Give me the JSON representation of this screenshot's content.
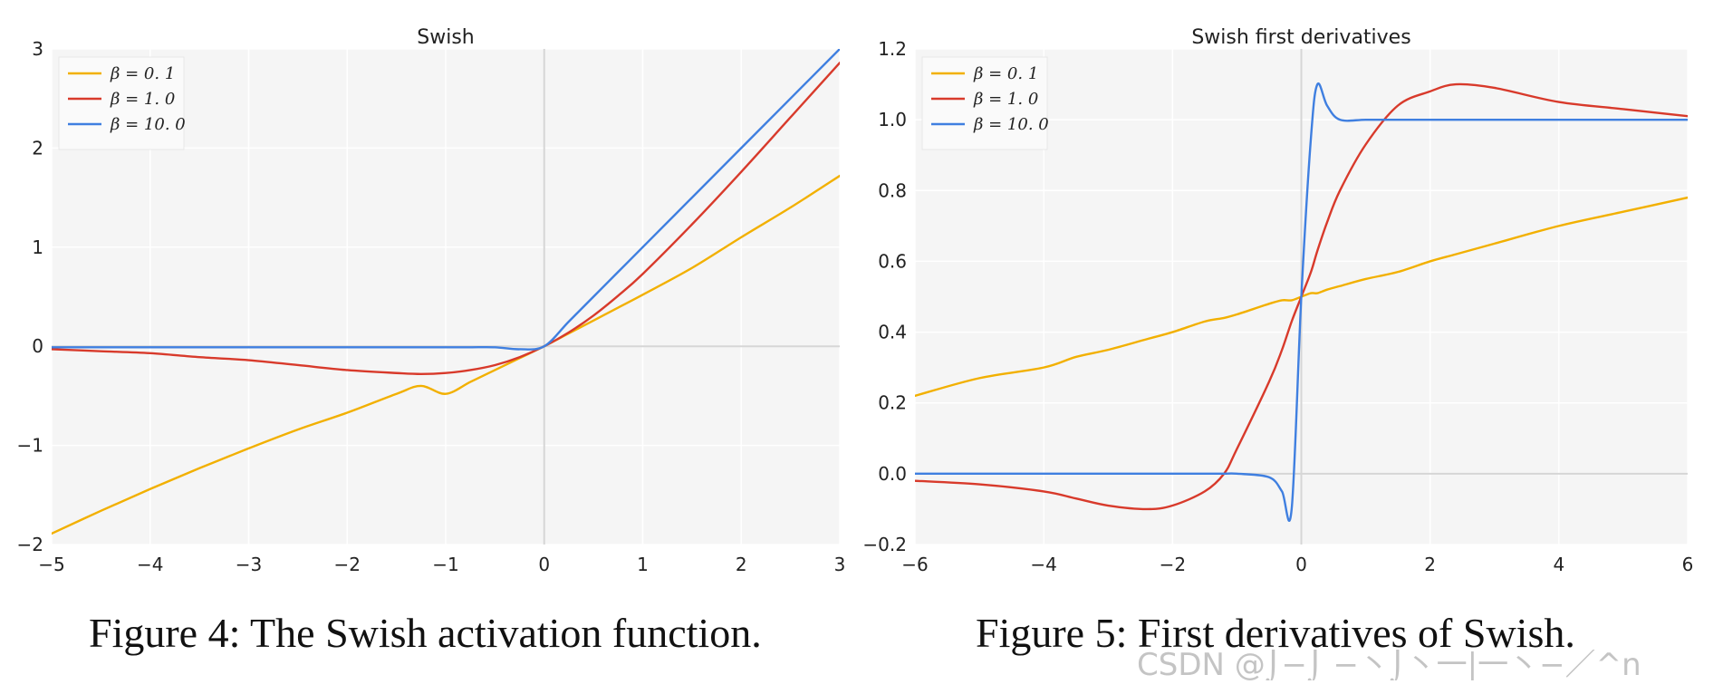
{
  "colors": {
    "plot_bg": "#f5f5f5",
    "grid": "#ffffff",
    "zero_line": "#d6d6d6",
    "text": "#222222",
    "yellow": "#f2b000",
    "red": "#d83a2b",
    "blue": "#3f7fe0",
    "legend_bg": "#fafafa",
    "watermark": "#b4b4b4"
  },
  "captions": {
    "left": "Figure 4: The Swish activation function.",
    "right": "Figure 5: First derivatives of Swish."
  },
  "watermark": "CSDN @⌡−⌡ −丶⌡丶一|一丶−／^n",
  "chart_data": [
    {
      "type": "line",
      "title": "Swish",
      "xlabel": "",
      "ylabel": "",
      "xlim": [
        -5,
        3
      ],
      "ylim": [
        -2,
        3
      ],
      "xticks": [
        -5,
        -4,
        -3,
        -2,
        -1,
        0,
        1,
        2,
        3
      ],
      "yticks": [
        -2,
        -1,
        0,
        1,
        2,
        3
      ],
      "x_tick_labels": [
        "−5",
        "−4",
        "−3",
        "−2",
        "−1",
        "0",
        "1",
        "2",
        "3"
      ],
      "y_tick_labels": [
        "−2",
        "−1",
        "0",
        "1",
        "2",
        "3"
      ],
      "grid": true,
      "legend_position": "top-left",
      "x": [
        -5,
        -4.5,
        -4,
        -3.5,
        -3,
        -2.5,
        -2,
        -1.5,
        -1.25,
        -1,
        -0.75,
        -0.5,
        -0.25,
        0,
        0.25,
        0.5,
        0.75,
        1,
        1.5,
        2,
        2.5,
        3
      ],
      "series": [
        {
          "name": "β=0.1",
          "legend_label": "β = 0. 1",
          "color_key": "yellow",
          "values": [
            -1.89,
            -1.66,
            -1.44,
            -1.23,
            -1.03,
            -0.84,
            -0.67,
            -0.48,
            -0.4,
            -0.48,
            -0.36,
            -0.24,
            -0.12,
            0,
            0.13,
            0.26,
            0.39,
            0.52,
            0.79,
            1.1,
            1.4,
            1.72
          ]
        },
        {
          "name": "β=1.0",
          "legend_label": "β = 1. 0",
          "color_key": "red",
          "values": [
            -0.03,
            -0.05,
            -0.07,
            -0.11,
            -0.14,
            -0.19,
            -0.24,
            -0.27,
            -0.28,
            -0.27,
            -0.24,
            -0.19,
            -0.11,
            0,
            0.14,
            0.31,
            0.51,
            0.73,
            1.23,
            1.76,
            2.31,
            2.86
          ]
        },
        {
          "name": "β=10.0",
          "legend_label": "β = 10. 0",
          "color_key": "blue",
          "values": [
            -0.01,
            -0.01,
            -0.01,
            -0.01,
            -0.01,
            -0.01,
            -0.01,
            -0.01,
            -0.01,
            -0.01,
            -0.01,
            -0.01,
            -0.03,
            0,
            0.25,
            0.5,
            0.75,
            1.0,
            1.5,
            2.0,
            2.5,
            3.0
          ]
        }
      ]
    },
    {
      "type": "line",
      "title": "Swish first derivatives",
      "xlabel": "",
      "ylabel": "",
      "xlim": [
        -6,
        6
      ],
      "ylim": [
        -0.2,
        1.2
      ],
      "xticks": [
        -6,
        -4,
        -2,
        0,
        2,
        4,
        6
      ],
      "yticks": [
        -0.2,
        0,
        0.2,
        0.4,
        0.6,
        0.8,
        1.0,
        1.2
      ],
      "x_tick_labels": [
        "−6",
        "−4",
        "−2",
        "0",
        "2",
        "4",
        "6"
      ],
      "y_tick_labels": [
        "−0.2",
        "0.0",
        "0.2",
        "0.4",
        "0.6",
        "0.8",
        "1.0",
        "1.2"
      ],
      "grid": true,
      "legend_position": "top-left",
      "x": [
        -6,
        -5,
        -4,
        -3.5,
        -3,
        -2.4,
        -2,
        -1.5,
        -1.2,
        -1,
        -0.5,
        -0.3,
        -0.15,
        0,
        0.15,
        0.25,
        0.4,
        0.6,
        1,
        1.5,
        2,
        2.4,
        3,
        4,
        5,
        6
      ],
      "series": [
        {
          "name": "β=0.1",
          "legend_label": "β = 0. 1",
          "color_key": "yellow",
          "values": [
            0.22,
            0.27,
            0.3,
            0.33,
            0.35,
            0.38,
            0.4,
            0.43,
            0.44,
            0.45,
            0.48,
            0.49,
            0.49,
            0.5,
            0.51,
            0.51,
            0.52,
            0.53,
            0.55,
            0.57,
            0.6,
            0.62,
            0.65,
            0.7,
            0.74,
            0.78
          ]
        },
        {
          "name": "β=1.0",
          "legend_label": "β = 1. 0",
          "color_key": "red",
          "values": [
            -0.02,
            -0.03,
            -0.05,
            -0.07,
            -0.09,
            -0.1,
            -0.09,
            -0.05,
            0.0,
            0.07,
            0.26,
            0.35,
            0.43,
            0.5,
            0.57,
            0.63,
            0.71,
            0.8,
            0.93,
            1.04,
            1.08,
            1.1,
            1.09,
            1.05,
            1.03,
            1.01
          ]
        },
        {
          "name": "β=10.0",
          "legend_label": "β = 10. 0",
          "color_key": "blue",
          "values": [
            0.0,
            0.0,
            0.0,
            0.0,
            0.0,
            0.0,
            0.0,
            0.0,
            0.0,
            0.0,
            -0.01,
            -0.05,
            -0.1,
            0.5,
            0.95,
            1.1,
            1.04,
            1.0,
            1.0,
            1.0,
            1.0,
            1.0,
            1.0,
            1.0,
            1.0,
            1.0
          ]
        }
      ]
    }
  ]
}
